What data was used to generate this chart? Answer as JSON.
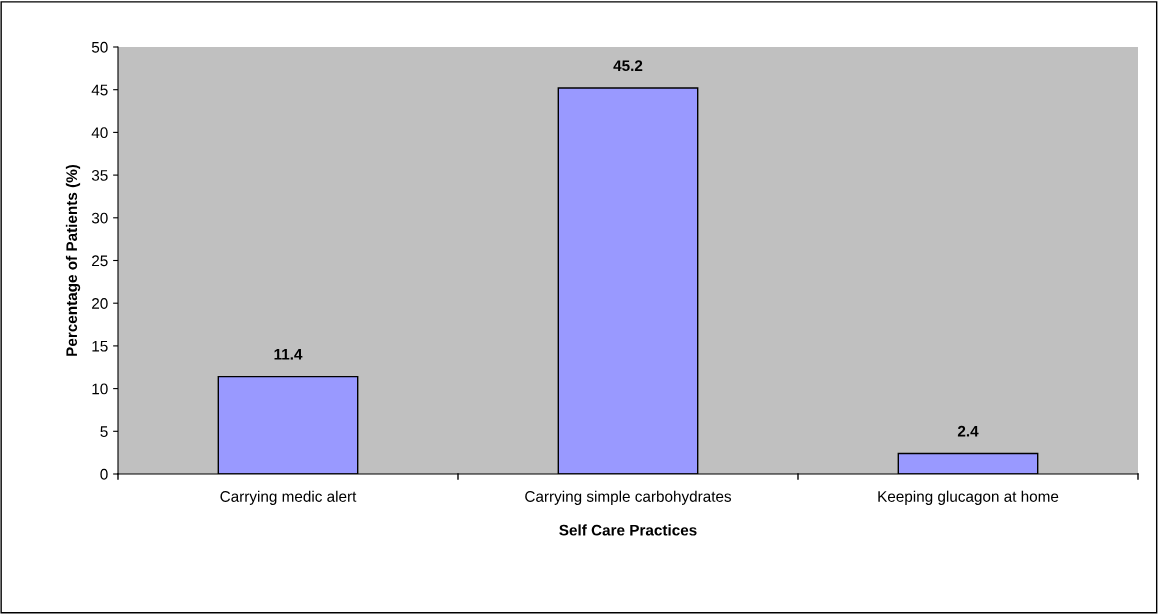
{
  "chart_data": {
    "type": "bar",
    "xlabel": "Self Care Practices",
    "ylabel": "Percentage of Patients (%)",
    "categories": [
      "Carrying medic alert",
      "Carrying simple carbohydrates",
      "Keeping glucagon at home"
    ],
    "values": [
      11.4,
      45.2,
      2.4
    ],
    "color": "#9999ff",
    "data_labels": true,
    "ylim": [
      0,
      50
    ],
    "yticks": [
      0,
      5,
      10,
      15,
      20,
      25,
      30,
      35,
      40,
      45,
      50
    ],
    "grid": false
  }
}
